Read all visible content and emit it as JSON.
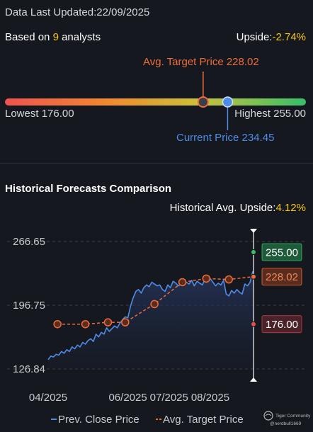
{
  "header": {
    "updated_label": "Data Last Updated:",
    "updated_date": "22/09/2025",
    "based_prefix": "Based on ",
    "analyst_count": "9",
    "based_suffix": " analysts",
    "upside_label": "Upside:",
    "upside_value": "-2.74%"
  },
  "range": {
    "avg_target_label": "Avg. Target Price 228.02",
    "lowest_label": "Lowest 176.00",
    "highest_label": "Highest 255.00",
    "current_label": "Current Price 234.45",
    "low": 176.0,
    "high": 255.0,
    "avg_target": 228.02,
    "current": 234.45
  },
  "historical": {
    "title": "Historical Forecasts Comparison",
    "upside_label": "Historical Avg. Upside:",
    "upside_value": "4.12%"
  },
  "colors": {
    "avg_target": "#ef6c3a",
    "current": "#4d8ce8",
    "highlight": "#f5c51a",
    "high_badge": "#1f5a3a",
    "avg_badge": "#5a2c1e",
    "low_badge": "#4a2228"
  },
  "chart_data": {
    "type": "line",
    "x_tick_labels": [
      "04/2025",
      "06/2025",
      "07/2025",
      "08/2025"
    ],
    "x_tick_days": [
      1,
      61,
      92,
      123
    ],
    "y_ticks": [
      126.84,
      196.75,
      266.65
    ],
    "ylim": [
      126.84,
      266.65
    ],
    "grid": true,
    "legend_position": "bottom",
    "series": [
      {
        "name": "Prev. Close Price",
        "style": "line-area",
        "x_days": [
          1,
          3,
          5,
          7,
          9,
          11,
          13,
          15,
          17,
          19,
          21,
          23,
          25,
          27,
          29,
          31,
          33,
          35,
          37,
          39,
          41,
          43,
          45,
          47,
          49,
          51,
          53,
          55,
          57,
          59,
          61,
          63,
          65,
          67,
          69,
          71,
          73,
          75,
          77,
          79,
          81,
          83,
          85,
          87,
          89,
          91,
          93,
          95,
          97,
          99,
          101,
          103,
          105,
          107,
          109,
          111,
          113,
          115,
          117,
          119,
          121,
          123,
          125,
          127,
          129,
          131,
          133,
          135,
          137,
          139,
          141,
          143,
          145,
          147,
          149,
          151,
          153,
          155
        ],
        "values": [
          137,
          141,
          140,
          143,
          142,
          146,
          144,
          148,
          146,
          151,
          149,
          153,
          151,
          156,
          154,
          158,
          160,
          157,
          165,
          162,
          167,
          165,
          172,
          168,
          171,
          174,
          172,
          177,
          181,
          184,
          183,
          196,
          205,
          212,
          214,
          210,
          216,
          219,
          217,
          222,
          220,
          218,
          219,
          214,
          212,
          219,
          216,
          223,
          221,
          218,
          220,
          219,
          222,
          220,
          224,
          218,
          223,
          221,
          219,
          225,
          223,
          226,
          222,
          218,
          221,
          219,
          224,
          209,
          207,
          213,
          210,
          214,
          211,
          209,
          220,
          218,
          222,
          234
        ]
      },
      {
        "name": "Avg. Target Price",
        "style": "dashed-with-markers",
        "x_days": [
          8,
          29,
          46,
          59,
          81,
          102,
          120,
          137,
          155
        ],
        "values": [
          176,
          176,
          178,
          178,
          198,
          222,
          226,
          225,
          228.02
        ]
      }
    ],
    "end_markers": [
      {
        "label": "255.00",
        "value": 255.0,
        "kind": "high"
      },
      {
        "label": "228.02",
        "value": 228.02,
        "kind": "avg"
      },
      {
        "label": "176.00",
        "value": 176.0,
        "kind": "low"
      }
    ]
  },
  "legend": {
    "close_label": "Prev. Close Price",
    "target_label": "Avg. Target Price"
  },
  "watermark": {
    "brand": "Tiger Community",
    "handle": "@nerdbull1669"
  }
}
